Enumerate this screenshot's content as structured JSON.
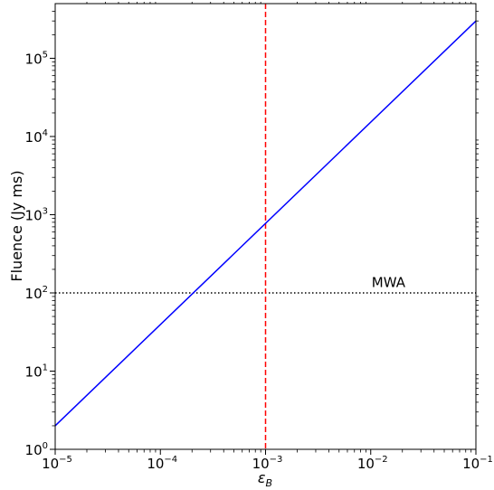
{
  "chart_data": {
    "type": "line",
    "xscale": "log",
    "yscale": "log",
    "xlim": [
      1e-05,
      0.1
    ],
    "ylim": [
      1,
      500000
    ],
    "xlabel_base": "ε",
    "xlabel_sub": "B",
    "ylabel": "Fluence (Jy ms)",
    "xticks": [
      {
        "base": "10",
        "exp": "−5",
        "value": 1e-05
      },
      {
        "base": "10",
        "exp": "−4",
        "value": 0.0001
      },
      {
        "base": "10",
        "exp": "−3",
        "value": 0.001
      },
      {
        "base": "10",
        "exp": "−2",
        "value": 0.01
      },
      {
        "base": "10",
        "exp": "−1",
        "value": 0.1
      }
    ],
    "yticks": [
      {
        "base": "10",
        "exp": "0",
        "value": 1
      },
      {
        "base": "10",
        "exp": "1",
        "value": 10
      },
      {
        "base": "10",
        "exp": "2",
        "value": 100
      },
      {
        "base": "10",
        "exp": "3",
        "value": 1000
      },
      {
        "base": "10",
        "exp": "4",
        "value": 10000
      },
      {
        "base": "10",
        "exp": "5",
        "value": 100000
      }
    ],
    "series": [
      {
        "x": [
          1e-05,
          0.1
        ],
        "y": [
          2,
          300000
        ],
        "color": "#0000ff",
        "style": "solid"
      }
    ],
    "vline": {
      "x": 0.001,
      "color": "#ff0000",
      "style": "dashed"
    },
    "hline": {
      "y": 100,
      "color": "#000000",
      "style": "dotted"
    },
    "annotations": [
      {
        "text": "MWA",
        "x": 0.01,
        "y": 115
      }
    ]
  }
}
